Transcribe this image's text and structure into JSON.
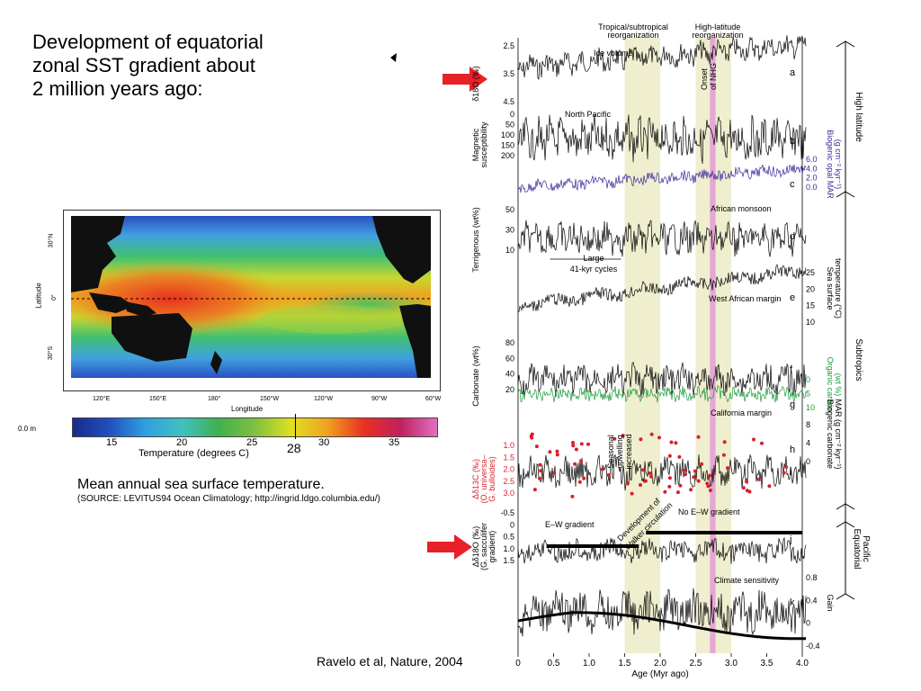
{
  "slide": {
    "title_lines": [
      "Development of equatorial",
      "zonal SST gradient about",
      "2 million years ago:"
    ],
    "caption": "Mean annual sea surface temperature.",
    "source": "(SOURCE: LEVITUS94 Ocean Climatology; http://ingrid.ldgo.columbia.edu/)",
    "citation": "Ravelo et al, Nature, 2004",
    "arrow_color": "#e8202a"
  },
  "map": {
    "ylabel": "Latitude",
    "xlabel": "Longitude",
    "lat_ticks": [
      "30°N",
      "0°",
      "30°S"
    ],
    "lon_ticks": [
      "120°E",
      "150°E",
      "180°",
      "150°W",
      "120°W",
      "90°W",
      "60°W"
    ],
    "depth_label": "0.0 m",
    "colorbar_label": "Temperature (degrees C)",
    "colorbar_ticks": [
      "15",
      "20",
      "25",
      "30",
      "35"
    ],
    "marker_value": "28",
    "colors": {
      "warm": "#e83020",
      "mid": "#f0d020",
      "cool": "#30c060",
      "cold": "#2040b0",
      "land": "#101010"
    }
  },
  "chart_data": {
    "type": "line",
    "xlabel": "Age (Myr ago)",
    "x_ticks": [
      "0",
      "0.5",
      "1.0",
      "1.5",
      "2.0",
      "2.5",
      "3.0",
      "3.5",
      "4.0"
    ],
    "xlim": [
      0,
      4.0
    ],
    "shaded_bands": [
      {
        "label": "Tropical/subtropical reorganization",
        "range": [
          1.5,
          2.0
        ],
        "color": "#efeecf"
      },
      {
        "label": "High-latitude reorganization",
        "range": [
          2.5,
          3.0
        ],
        "color": "#efeecf"
      },
      {
        "label": "Onset of NHG",
        "range": [
          2.7,
          2.78
        ],
        "color": "#e6a6d6"
      }
    ],
    "band_labels": [
      "Tropical/subtropical",
      "reorganization",
      "High-latitude",
      "reorganization"
    ],
    "onset_label": [
      "Onset",
      "of NHG"
    ],
    "region_labels": [
      "High latitude",
      "Subtropics",
      "Equatorial",
      "Pacific"
    ],
    "panels": [
      {
        "id": "a",
        "name": "Ice volume",
        "ylabel": [
          "δ18O (‰)"
        ],
        "ticks": [
          "2.5",
          "3.5",
          "4.5"
        ]
      },
      {
        "id": "b",
        "name": "North Pacific",
        "ylabel": [
          "Magnetic",
          "susceptibility"
        ],
        "ticks": [
          "0",
          "50",
          "100",
          "150",
          "200"
        ]
      },
      {
        "id": "c",
        "ylabel_right": [
          "Biogenic opal MAR",
          "(g cm⁻² kyr⁻¹)"
        ],
        "ticks_right": [
          "6.0",
          "4.0",
          "2.0",
          "0.0"
        ],
        "color": "#3a2a9a"
      },
      {
        "id": "d",
        "name": "African monsoon",
        "ylabel": [
          "Terrigenous (wt%)"
        ],
        "ticks": [
          "50",
          "30",
          "10"
        ],
        "annotation": [
          "Large",
          "41-kyr cycles"
        ]
      },
      {
        "id": "e",
        "name": "West African margin",
        "ylabel_right": [
          "Sea surface",
          "temperature (°C)"
        ],
        "ticks_right": [
          "25",
          "20",
          "15",
          "10"
        ]
      },
      {
        "id": "f",
        "ylabel": [
          "Carbonate (wt%)"
        ],
        "ticks": [
          "80",
          "60",
          "40",
          "20"
        ]
      },
      {
        "id": "g",
        "name": "California margin",
        "ylabel_right": [
          "Organic carbon",
          "(wt %)"
        ],
        "ticks_right": [
          "0",
          "5",
          "10"
        ],
        "color": "#1a9a3a"
      },
      {
        "id": "h",
        "ylabel_right": [
          "Biogenic carbonate",
          "MAR (g cm⁻² kyr⁻¹)"
        ],
        "ticks_right": [
          "8",
          "4",
          "0"
        ]
      },
      {
        "id": "i",
        "ylabel": [
          "Δδ13C (‰)",
          "(O. universa–",
          "G. bulloides)"
        ],
        "ticks": [
          "1.0",
          "1.5",
          "2.0",
          "2.5",
          "3.0"
        ],
        "color": "#d8202a",
        "annotation": [
          "Seasonal",
          "upwelling",
          "increased"
        ]
      },
      {
        "id": "j",
        "name": "No E–W gradient",
        "name2": "E–W gradient",
        "ylabel": [
          "Δδ18O (‰)",
          "(G. sacculifer",
          "gradient)"
        ],
        "ticks": [
          "-0.5",
          "0",
          "0.5",
          "1.0",
          "1.5"
        ],
        "annotation": [
          "Development of",
          "Walker circulation"
        ]
      },
      {
        "id": "k",
        "name": "Climate sensitivity",
        "ylabel_right": [
          "Gain"
        ],
        "ticks_right": [
          "0.8",
          "0.4",
          "0",
          "-0.4"
        ]
      }
    ]
  }
}
